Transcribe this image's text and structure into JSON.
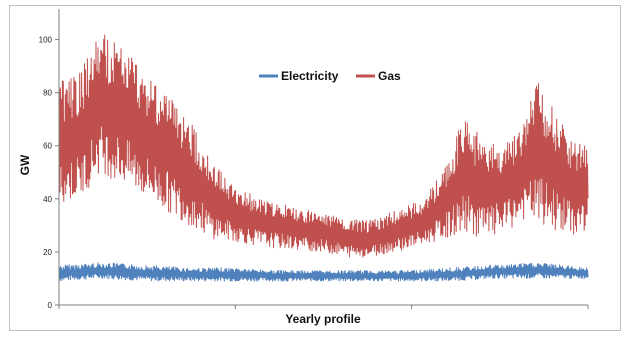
{
  "chart_data": {
    "type": "line",
    "title": "",
    "xlabel": "Yearly profile",
    "ylabel": "GW",
    "ylim": [
      0,
      110
    ],
    "yticks": [
      0,
      20,
      40,
      60,
      80,
      100
    ],
    "xlim": [
      0,
      365
    ],
    "grid": false,
    "legend_position": "top-center",
    "colors": {
      "electricity": "#4f81bd",
      "gas": "#c0504d"
    },
    "series": [
      {
        "name": "Electricity",
        "x": [
          0,
          30,
          60,
          90,
          120,
          150,
          180,
          210,
          240,
          270,
          300,
          330,
          365
        ],
        "low": [
          9,
          10,
          9,
          9,
          9,
          9,
          9,
          9,
          9,
          9,
          10,
          10,
          10
        ],
        "high": [
          15,
          16,
          15,
          14,
          14,
          13,
          13,
          13,
          13,
          14,
          15,
          16,
          14
        ]
      },
      {
        "name": "Gas",
        "x": [
          0,
          15,
          28,
          45,
          60,
          75,
          90,
          105,
          120,
          140,
          160,
          180,
          200,
          215,
          230,
          250,
          265,
          280,
          295,
          310,
          320,
          330,
          345,
          355,
          365
        ],
        "low": [
          38,
          40,
          50,
          45,
          40,
          35,
          30,
          25,
          24,
          22,
          21,
          20,
          18,
          18,
          20,
          22,
          25,
          27,
          25,
          28,
          32,
          30,
          28,
          26,
          28
        ],
        "high": [
          84,
          88,
          103,
          98,
          88,
          80,
          70,
          55,
          45,
          40,
          37,
          35,
          32,
          32,
          35,
          40,
          50,
          72,
          60,
          62,
          68,
          86,
          70,
          62,
          64
        ]
      }
    ]
  }
}
